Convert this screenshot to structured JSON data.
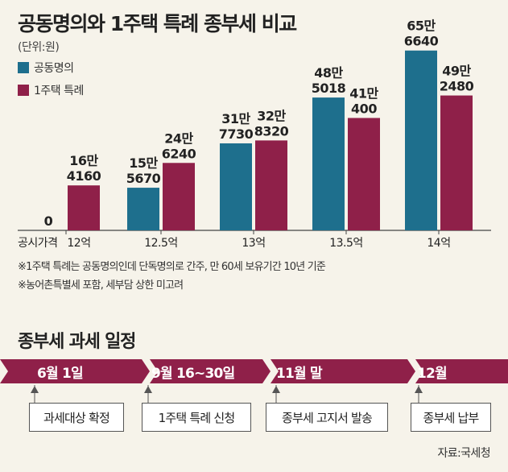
{
  "title": "공동명의와 1주택 특례 종부세 비교",
  "unit": "(단위:원)",
  "colors": {
    "joint": "#1e6f8d",
    "single": "#8f2049",
    "band": "#8f2049",
    "axis": "#444444"
  },
  "chart_data": {
    "type": "bar",
    "title": "공동명의와 1주택 특례 종부세 비교",
    "xlabel_prefix": "공시가격",
    "categories": [
      "12억",
      "12.5억",
      "13억",
      "13.5억",
      "14억"
    ],
    "ylim": [
      0,
      700000
    ],
    "series": [
      {
        "name": "공동명의",
        "values": [
          0,
          155670,
          317730,
          485018,
          656640
        ],
        "labels": [
          [
            "0"
          ],
          [
            "15만",
            "5670"
          ],
          [
            "31만",
            "7730"
          ],
          [
            "48만",
            "5018"
          ],
          [
            "65만",
            "6640"
          ]
        ]
      },
      {
        "name": "1주택 특례",
        "values": [
          164160,
          246240,
          328320,
          410400,
          492480
        ],
        "labels": [
          [
            "16만",
            "4160"
          ],
          [
            "24만",
            "6240"
          ],
          [
            "32만",
            "8320"
          ],
          [
            "41만",
            "400"
          ],
          [
            "49만",
            "2480"
          ]
        ]
      }
    ]
  },
  "notes": [
    "※1주택 특례는 공동명의인데 단독명의로 간주, 만 60세 보유기간 10년 기준",
    "※농어촌특별세 포함, 세부담 상한 미고려"
  ],
  "schedule": {
    "title": "종부세 과세 일정",
    "items": [
      {
        "date": "6월 1일",
        "event": "과세대상 확정"
      },
      {
        "date": "9월 16~30일",
        "event": "1주택 특례 신청"
      },
      {
        "date": "11월 말",
        "event": "종부세 고지서 발송"
      },
      {
        "date": "12월",
        "event": "종부세 납부"
      }
    ]
  },
  "source": "자료:국세청"
}
